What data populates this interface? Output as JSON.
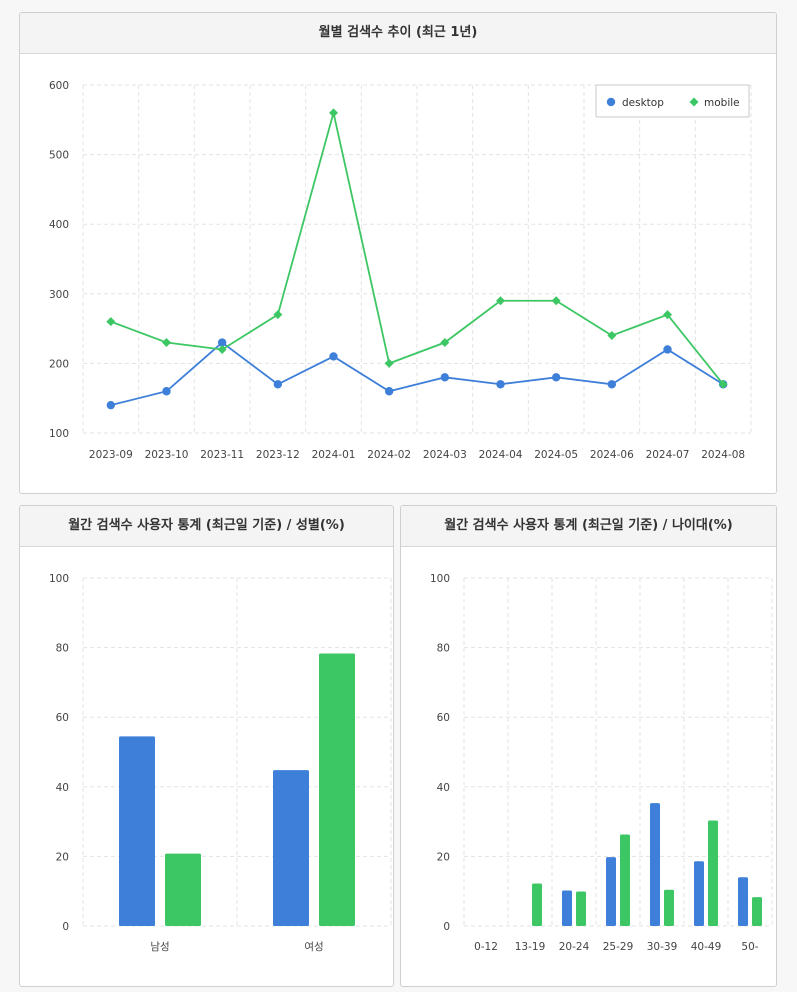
{
  "colors": {
    "desktop": "#3d7fd9",
    "mobile": "#3cc764",
    "grid": "#e3e3e3"
  },
  "panels": {
    "trend": {
      "title": "월별 검색수 추이 (최근 1년)"
    },
    "gender": {
      "title": "월간 검색수 사용자 통계 (최근일 기준) / 성별(%)"
    },
    "age": {
      "title": "월간 검색수 사용자 통계 (최근일 기준) / 나이대(%)"
    }
  },
  "chart_data": [
    {
      "id": "trend",
      "type": "line",
      "title": "월별 검색수 추이 (최근 1년)",
      "categories": [
        "2023-09",
        "2023-10",
        "2023-11",
        "2023-12",
        "2024-01",
        "2024-02",
        "2024-03",
        "2024-04",
        "2024-05",
        "2024-06",
        "2024-07",
        "2024-08"
      ],
      "series": [
        {
          "name": "desktop",
          "values": [
            140,
            160,
            230,
            170,
            210,
            160,
            180,
            170,
            180,
            170,
            220,
            170
          ]
        },
        {
          "name": "mobile",
          "values": [
            260,
            230,
            220,
            270,
            560,
            200,
            230,
            290,
            290,
            240,
            270,
            170
          ]
        }
      ],
      "ylim": [
        100,
        600
      ],
      "yticks": [
        100,
        200,
        300,
        400,
        500,
        600
      ],
      "legend": "top-right",
      "grid": true
    },
    {
      "id": "gender",
      "type": "bar",
      "title": "월간 검색수 사용자 통계 (최근일 기준) / 성별(%)",
      "categories": [
        "남성",
        "여성"
      ],
      "series": [
        {
          "name": "desktop",
          "values": [
            54.5,
            44.8
          ]
        },
        {
          "name": "mobile",
          "values": [
            20.8,
            78.3
          ]
        }
      ],
      "ylim": [
        0,
        100
      ],
      "yticks": [
        0,
        20,
        40,
        60,
        80,
        100
      ],
      "grid": true
    },
    {
      "id": "age",
      "type": "bar",
      "title": "월간 검색수 사용자 통계 (최근일 기준) / 나이대(%)",
      "categories": [
        "0-12",
        "13-19",
        "20-24",
        "25-29",
        "30-39",
        "40-49",
        "50-"
      ],
      "series": [
        {
          "name": "desktop",
          "values": [
            0,
            0,
            10.2,
            19.8,
            35.3,
            18.6,
            14.0
          ]
        },
        {
          "name": "mobile",
          "values": [
            0,
            12.2,
            9.9,
            26.3,
            10.4,
            30.3,
            8.3
          ]
        }
      ],
      "ylim": [
        0,
        100
      ],
      "yticks": [
        0,
        20,
        40,
        60,
        80,
        100
      ],
      "grid": true
    }
  ]
}
